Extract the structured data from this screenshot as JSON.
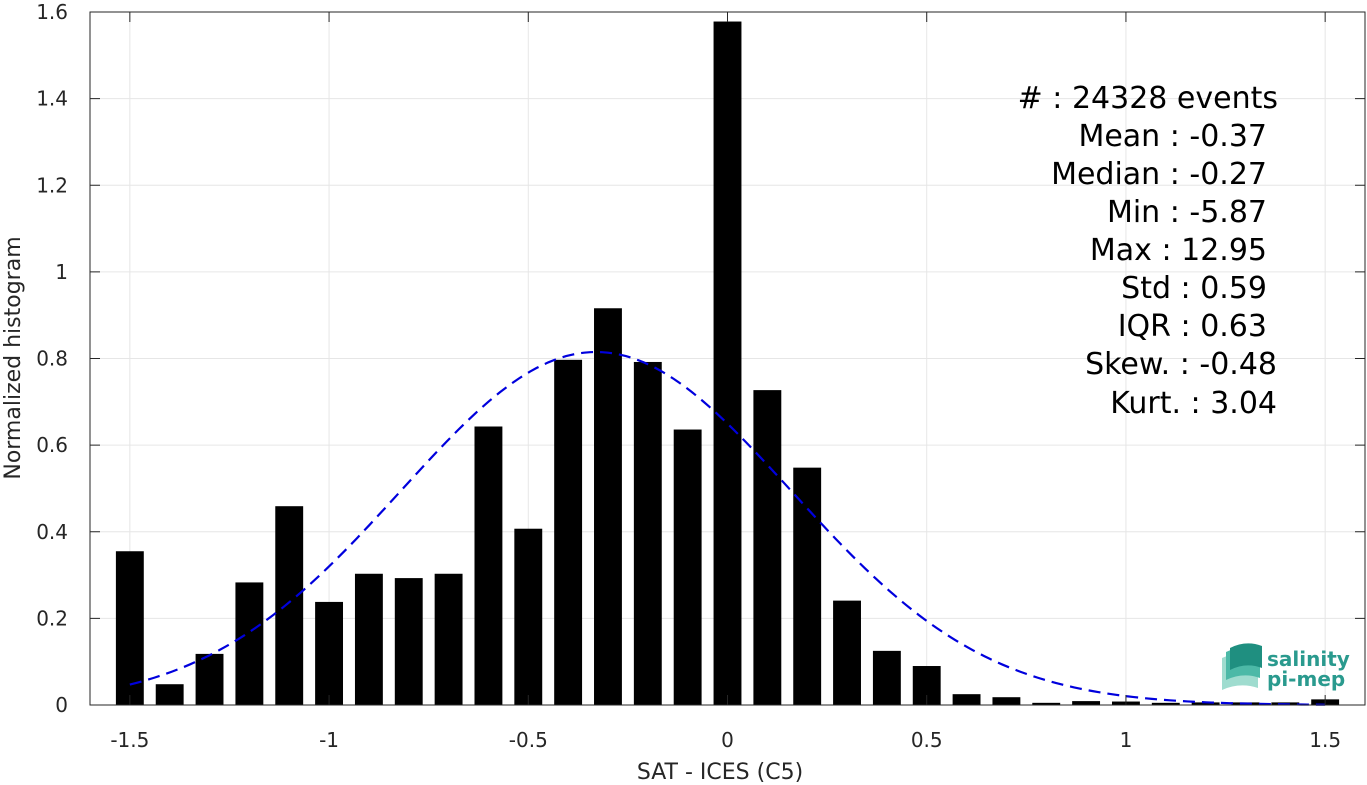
{
  "chart_data": {
    "type": "bar",
    "xlabel": "SAT - ICES (C5)",
    "ylabel": "Normalized histogram",
    "xlim": [
      -1.6,
      1.6
    ],
    "ylim": [
      0,
      1.6
    ],
    "xticks": [
      -1.5,
      -1,
      -0.5,
      0,
      0.5,
      1,
      1.5
    ],
    "xtick_labels": [
      "-1.5",
      "-1",
      "-0.5",
      "0",
      "0.5",
      "1",
      "1.5"
    ],
    "yticks": [
      0,
      0.2,
      0.4,
      0.6,
      0.8,
      1,
      1.2,
      1.4,
      1.6
    ],
    "ytick_labels": [
      "0",
      "0.2",
      "0.4",
      "0.6",
      "0.8",
      "1",
      "1.2",
      "1.4",
      "1.6"
    ],
    "grid": true,
    "bar_width": 0.07,
    "bar_color": "#000000",
    "x": [
      -1.5,
      -1.4,
      -1.3,
      -1.2,
      -1.1,
      -1.0,
      -0.9,
      -0.8,
      -0.7,
      -0.6,
      -0.5,
      -0.4,
      -0.3,
      -0.2,
      -0.1,
      0.0,
      0.1,
      0.2,
      0.3,
      0.4,
      0.5,
      0.6,
      0.7,
      0.8,
      0.9,
      1.0,
      1.1,
      1.2,
      1.3,
      1.4,
      1.5
    ],
    "values": [
      0.355,
      0.048,
      0.118,
      0.283,
      0.459,
      0.238,
      0.303,
      0.293,
      0.303,
      0.643,
      0.407,
      0.797,
      0.916,
      0.792,
      0.636,
      1.578,
      0.727,
      0.548,
      0.241,
      0.125,
      0.09,
      0.025,
      0.018,
      0.005,
      0.009,
      0.008,
      0.005,
      0.006,
      0.006,
      0.006,
      0.013
    ],
    "fit": {
      "type": "normal",
      "mean": -0.33,
      "peak": 0.815,
      "sigma": 0.49,
      "x_range": [
        -1.5,
        1.5
      ],
      "color": "#0000dd",
      "style": "dashed"
    },
    "stats": [
      "#  : 24328 events",
      "Mean : -0.37",
      "Median : -0.27",
      "Min : -5.87",
      "Max : 12.95",
      "Std : 0.59",
      "IQR : 0.63",
      "Skew. : -0.48",
      "Kurt. : 3.04"
    ],
    "stats_placement": "top-right"
  },
  "logo": {
    "line1": "salinity",
    "line2": "pi-mep",
    "color": "#2a9a8e"
  }
}
